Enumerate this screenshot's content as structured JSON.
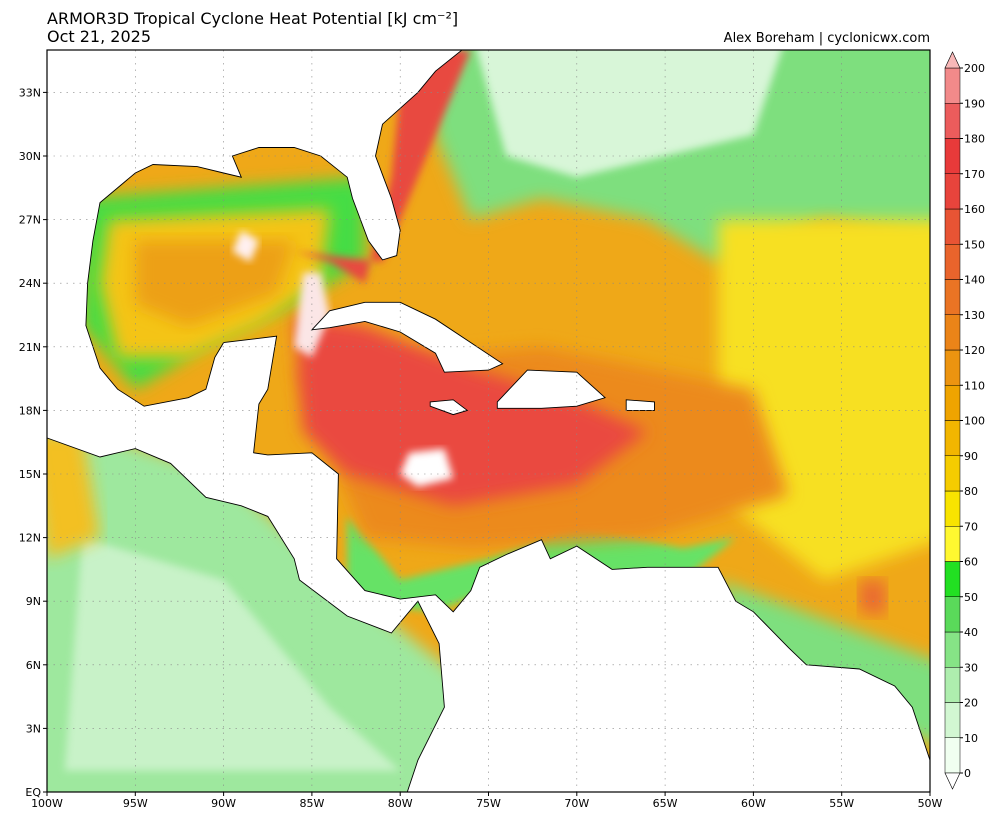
{
  "title": "ARMOR3D Tropical Cyclone Heat Potential [kJ cm⁻²]",
  "date": "Oct 21, 2025",
  "credit": "Alex Boreham | cyclonicwx.com",
  "map": {
    "lon_range": [
      -100,
      -50
    ],
    "lat_range": [
      0,
      35
    ],
    "lat_ticks": [
      {
        "value": 0,
        "label": "EQ"
      },
      {
        "value": 3,
        "label": "3N"
      },
      {
        "value": 6,
        "label": "6N"
      },
      {
        "value": 9,
        "label": "9N"
      },
      {
        "value": 12,
        "label": "12N"
      },
      {
        "value": 15,
        "label": "15N"
      },
      {
        "value": 18,
        "label": "18N"
      },
      {
        "value": 21,
        "label": "21N"
      },
      {
        "value": 24,
        "label": "24N"
      },
      {
        "value": 27,
        "label": "27N"
      },
      {
        "value": 30,
        "label": "30N"
      },
      {
        "value": 33,
        "label": "33N"
      }
    ],
    "lon_ticks": [
      {
        "value": -100,
        "label": "100W"
      },
      {
        "value": -95,
        "label": "95W"
      },
      {
        "value": -90,
        "label": "90W"
      },
      {
        "value": -85,
        "label": "85W"
      },
      {
        "value": -80,
        "label": "80W"
      },
      {
        "value": -75,
        "label": "75W"
      },
      {
        "value": -70,
        "label": "70W"
      },
      {
        "value": -65,
        "label": "65W"
      },
      {
        "value": -60,
        "label": "60W"
      },
      {
        "value": -55,
        "label": "55W"
      },
      {
        "value": -50,
        "label": "50W"
      }
    ]
  },
  "colorbar": {
    "ticks": [
      0,
      10,
      20,
      30,
      40,
      50,
      60,
      70,
      80,
      90,
      100,
      110,
      120,
      130,
      140,
      150,
      160,
      170,
      180,
      190,
      200
    ],
    "colors": [
      "#f0fff0",
      "#d2f7d2",
      "#aeeeae",
      "#86e486",
      "#5ada5a",
      "#22e022",
      "#fff830",
      "#f8e400",
      "#f5cc00",
      "#f2b600",
      "#efa400",
      "#ec9410",
      "#eb8418",
      "#ea7424",
      "#e9642c",
      "#e85434",
      "#e8443c",
      "#e83a3a",
      "#ec5c5c",
      "#f28a8a",
      "#f8b8b8"
    ]
  }
}
